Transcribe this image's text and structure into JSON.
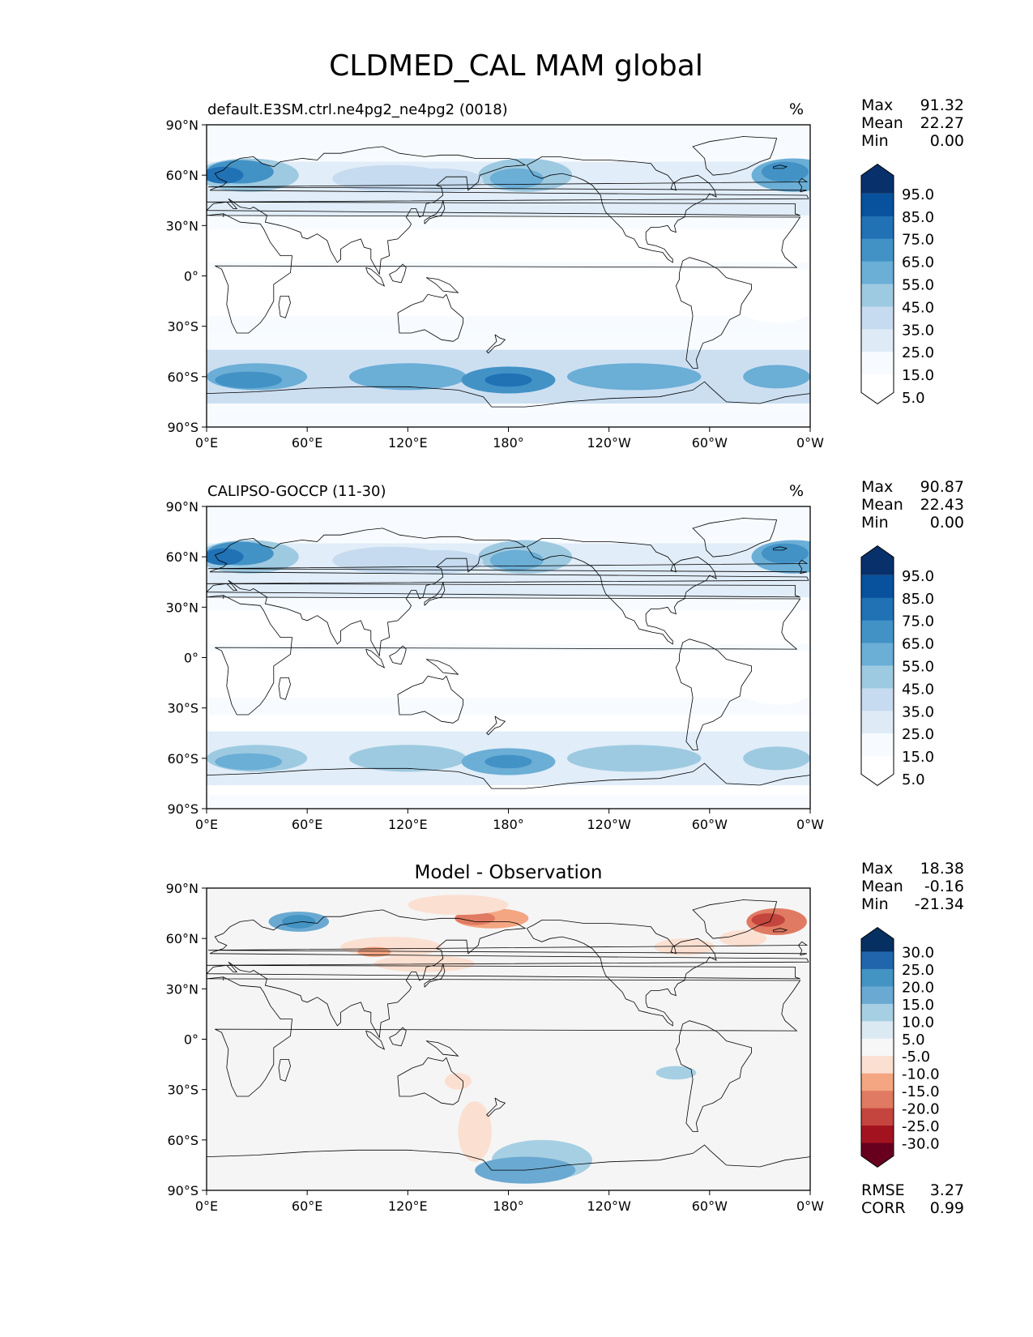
{
  "chart_data": {
    "type": "map-contour",
    "title": "CLDMED_CAL MAM global",
    "lat_ticks": [
      "90°N",
      "60°N",
      "30°N",
      "0°",
      "30°S",
      "60°S",
      "90°S"
    ],
    "lon_ticks": [
      "0°E",
      "60°E",
      "120°E",
      "180°",
      "120°W",
      "60°W",
      "0°W"
    ],
    "panels": [
      {
        "name": "test",
        "title_left": "default.E3SM.ctrl.ne4pg2_ne4pg2 (0018)",
        "title_center": "",
        "units": "%",
        "stats": [
          {
            "label": "Max",
            "value": "91.32"
          },
          {
            "label": "Mean",
            "value": "22.27"
          },
          {
            "label": "Min",
            "value": "0.00"
          }
        ],
        "colorbar_labels": [
          "95.0",
          "85.0",
          "75.0",
          "65.0",
          "55.0",
          "45.0",
          "35.0",
          "25.0",
          "15.0",
          "5.0"
        ],
        "colorbar_colors": [
          "#08306b",
          "#08519c",
          "#2171b5",
          "#4292c6",
          "#6baed6",
          "#9ecae1",
          "#c6dbef",
          "#deebf7",
          "#f7fbff",
          "#ffffff"
        ],
        "metrics": []
      },
      {
        "name": "reference",
        "title_left": "CALIPSO-GOCCP (11-30)",
        "title_center": "",
        "units": "%",
        "stats": [
          {
            "label": "Max",
            "value": "90.87"
          },
          {
            "label": "Mean",
            "value": "22.43"
          },
          {
            "label": "Min",
            "value": "0.00"
          }
        ],
        "colorbar_labels": [
          "95.0",
          "85.0",
          "75.0",
          "65.0",
          "55.0",
          "45.0",
          "35.0",
          "25.0",
          "15.0",
          "5.0"
        ],
        "colorbar_colors": [
          "#08306b",
          "#08519c",
          "#2171b5",
          "#4292c6",
          "#6baed6",
          "#9ecae1",
          "#c6dbef",
          "#deebf7",
          "#f7fbff",
          "#ffffff"
        ],
        "metrics": []
      },
      {
        "name": "difference",
        "title_left": "",
        "title_center": "Model - Observation",
        "units": "",
        "stats": [
          {
            "label": "Max",
            "value": "18.38"
          },
          {
            "label": "Mean",
            "value": "-0.16"
          },
          {
            "label": "Min",
            "value": "-21.34"
          }
        ],
        "colorbar_labels": [
          "30.0",
          "25.0",
          "20.0",
          "15.0",
          "10.0",
          "5.0",
          "-5.0",
          "-10.0",
          "-15.0",
          "-20.0",
          "-25.0",
          "-30.0"
        ],
        "colorbar_colors": [
          "#053061",
          "#2166ac",
          "#4393c3",
          "#6aa9d1",
          "#a6cfe3",
          "#dbe9f3",
          "#f7f7f7",
          "#fbe0d2",
          "#f4a582",
          "#e07a62",
          "#c4453d",
          "#a3131f",
          "#67001f"
        ],
        "metrics": [
          {
            "label": "RMSE",
            "value": "3.27"
          },
          {
            "label": "CORR",
            "value": "0.99"
          }
        ]
      }
    ]
  }
}
